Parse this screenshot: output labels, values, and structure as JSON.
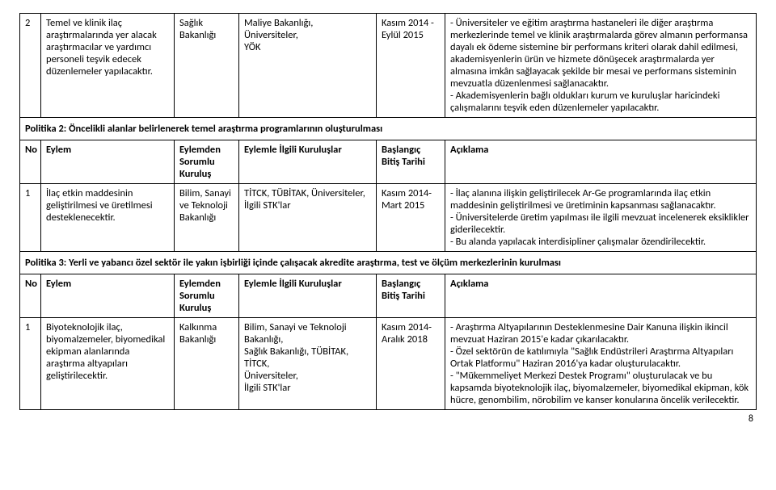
{
  "row2": {
    "no": "2",
    "eylem": "Temel ve klinik ilaç araştırmalarında yer alacak araştırmacılar ve yardımcı personeli teşvik edecek düzenlemeler yapılacaktır.",
    "sorumlu": "Sağlık Bakanlığı",
    "ilgili_1": "Maliye Bakanlığı,",
    "ilgili_2": "Üniversiteler,",
    "ilgili_3": "YÖK",
    "tarih": "Kasım 2014 - Eylül 2015",
    "aciklama_1": "- Üniversiteler ve eğitim araştırma hastaneleri ile diğer araştırma merkezlerinde temel ve klinik araştırmalarda görev almanın performansa dayalı ek ödeme sistemine bir performans kriteri olarak dahil edilmesi, akademisyenlerin ürün ve hizmete dönüşecek araştırmalarda yer almasına imkân sağlayacak şekilde bir mesai ve performans sisteminin mevzuatla düzenlenmesi sağlanacaktır.",
    "aciklama_2": "- Akademisyenlerin bağlı oldukları kurum ve kuruluşlar haricindeki çalışmalarını teşvik eden düzenlemeler yapılacaktır."
  },
  "politika2": {
    "title": "Politika 2: Öncelikli alanlar belirlenerek temel araştırma programlarının oluşturulması",
    "head_no": "No",
    "head_eylem": "Eylem",
    "head_sor": "Eylemden Sorumlu Kuruluş",
    "head_ilg": "Eylemle İlgili Kuruluşlar",
    "head_tar": "Başlangıç Bitiş Tarihi",
    "head_ack": "Açıklama",
    "row1": {
      "no": "1",
      "eylem": "İlaç etkin maddesinin geliştirilmesi ve üretilmesi desteklenecektir.",
      "sorumlu": "Bilim, Sanayi ve Teknoloji Bakanlığı",
      "ilgili": "TİTCK, TÜBİTAK, Üniversiteler, İlgili STK'lar",
      "tarih": "Kasım 2014- Mart 2015",
      "ack_1": "- İlaç alanına ilişkin geliştirilecek Ar-Ge programlarında ilaç etkin maddesinin geliştirilmesi ve üretiminin kapsanması sağlanacaktır.",
      "ack_2": "- Üniversitelerde üretim yapılması ile ilgili mevzuat incelenerek eksiklikler giderilecektir.",
      "ack_3": "- Bu alanda yapılacak interdisipliner çalışmalar özendirilecektir."
    }
  },
  "politika3": {
    "title": "Politika 3: Yerli ve yabancı özel sektör ile yakın işbirliği içinde çalışacak akredite araştırma, test ve ölçüm merkezlerinin kurulması",
    "head_no": "No",
    "head_eylem": "Eylem",
    "head_sor": "Eylemden Sorumlu Kuruluş",
    "head_ilg": "Eylemle İlgili Kuruluşlar",
    "head_tar": "Başlangıç Bitiş Tarihi",
    "head_ack": "Açıklama",
    "row1": {
      "no": "1",
      "eylem": "Biyoteknolojik ilaç, biyomalzemeler, biyomedikal ekipman alanlarında araştırma altyapıları geliştirilecektir.",
      "sorumlu": "Kalkınma Bakanlığı",
      "ilg_1": "Bilim, Sanayi ve Teknoloji Bakanlığı,",
      "ilg_2": "Sağlık Bakanlığı, TÜBİTAK, TİTCK,",
      "ilg_3": "Üniversiteler,",
      "ilg_4": "İlgili STK'lar",
      "tarih": "Kasım 2014- Aralık 2018",
      "ack_1": "- Araştırma Altyapılarının Desteklenmesine Dair Kanuna ilişkin ikincil mevzuat Haziran 2015'e kadar çıkarılacaktır.",
      "ack_2": "- Özel sektörün de katılımıyla \"Sağlık Endüstrileri Araştırma Altyapıları Ortak Platformu\" Haziran 2016'ya kadar oluşturulacaktır.",
      "ack_3": "- \"Mükemmeliyet Merkezi Destek Programı\" oluşturulacak ve bu kapsamda biyoteknolojik ilaç, biyomalzemeler, biyomedikal ekipman, kök hücre, genombilim, nörobilim ve kanser konularına öncelik verilecektir."
    }
  },
  "pagenum": "8"
}
